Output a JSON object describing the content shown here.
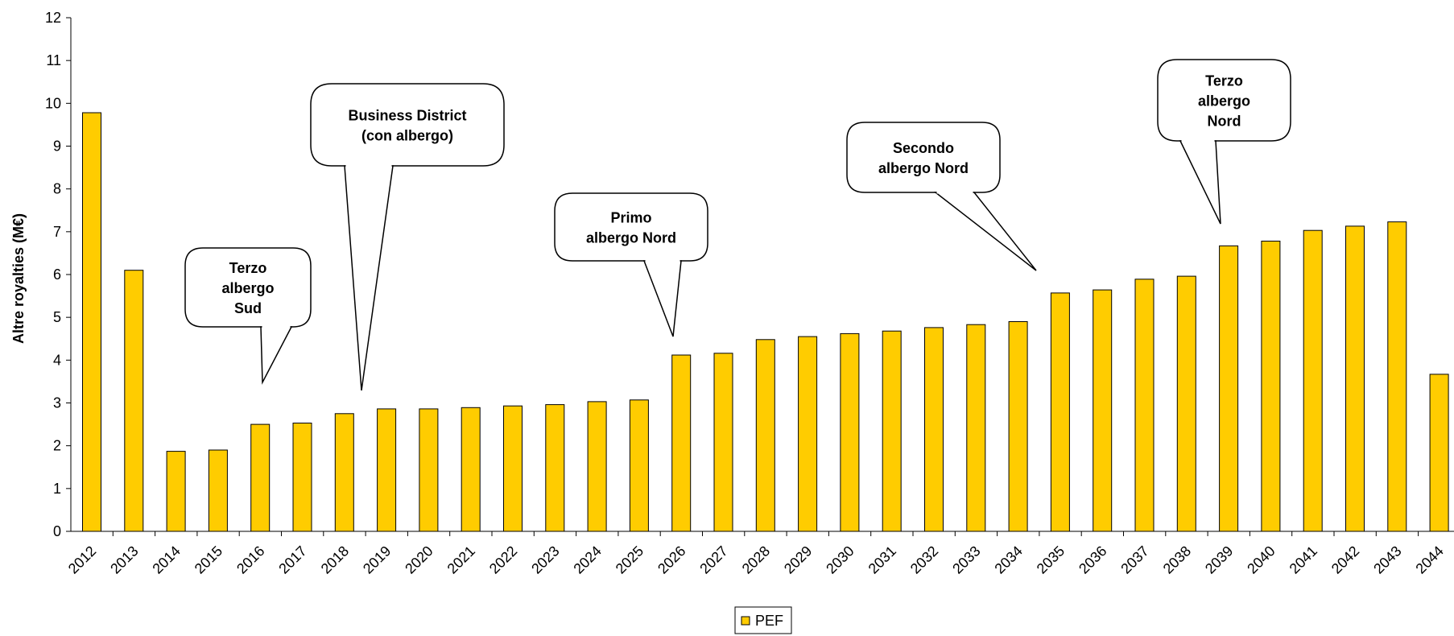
{
  "chart_data": {
    "type": "bar",
    "title": "",
    "xlabel": "",
    "ylabel": "Altre royalties (M€)",
    "ylim": [
      0,
      12
    ],
    "yticks": [
      0,
      1,
      2,
      3,
      4,
      5,
      6,
      7,
      8,
      9,
      10,
      11,
      12
    ],
    "grid": false,
    "legend_position": "bottom-center",
    "bar_color": "#FFCC00",
    "categories": [
      "2012",
      "2013",
      "2014",
      "2015",
      "2016",
      "2017",
      "2018",
      "2019",
      "2020",
      "2021",
      "2022",
      "2023",
      "2024",
      "2025",
      "2026",
      "2027",
      "2028",
      "2029",
      "2030",
      "2031",
      "2032",
      "2033",
      "2034",
      "2035",
      "2036",
      "2037",
      "2038",
      "2039",
      "2040",
      "2041",
      "2042",
      "2043",
      "2044"
    ],
    "series": [
      {
        "name": "PEF",
        "values": [
          9.78,
          6.1,
          1.87,
          1.9,
          2.5,
          2.53,
          2.75,
          2.86,
          2.86,
          2.89,
          2.93,
          2.96,
          3.03,
          3.07,
          4.12,
          4.16,
          4.48,
          4.55,
          4.62,
          4.68,
          4.76,
          4.83,
          4.9,
          5.57,
          5.64,
          5.89,
          5.96,
          6.67,
          6.78,
          7.03,
          7.13,
          7.23,
          3.67
        ]
      }
    ],
    "annotations": [
      {
        "text_lines": [
          "Terzo",
          "albergo",
          "Sud"
        ],
        "points_to": "2016"
      },
      {
        "text_lines": [
          "Business District",
          "(con albergo)"
        ],
        "points_to": "2019"
      },
      {
        "text_lines": [
          "Primo",
          "albergo Nord"
        ],
        "points_to": "2026"
      },
      {
        "text_lines": [
          "Secondo",
          "albergo Nord"
        ],
        "points_to": "2035"
      },
      {
        "text_lines": [
          "Terzo",
          "albergo",
          "Nord"
        ],
        "points_to": "2039"
      }
    ]
  }
}
